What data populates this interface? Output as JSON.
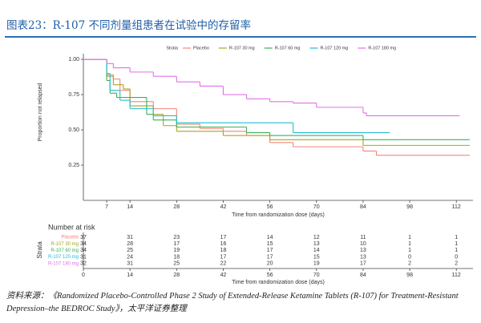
{
  "header": {
    "title": "图表23：R-107 不同剂量组患者在试验中的存留率"
  },
  "chart_data": {
    "type": "step",
    "legend_title": "Strata",
    "ylabel": "Proportion not relapsed",
    "xlabel": "Time from randomization dose (days)",
    "xlim": [
      0,
      117
    ],
    "ylim": [
      0,
      1.04
    ],
    "xticks": [
      7,
      14,
      28,
      42,
      56,
      70,
      84,
      98,
      112
    ],
    "yticks": [
      {
        "value": 0.25,
        "label": "0.25"
      },
      {
        "value": 0.5,
        "label": "0.50"
      },
      {
        "value": 0.75,
        "label": "0.75"
      },
      {
        "value": 1,
        "label": "1.00"
      }
    ],
    "series": [
      {
        "name": "Placebo",
        "color": "#f4847a",
        "x": [
          0,
          7,
          9,
          11,
          14,
          21,
          28,
          35,
          42,
          49,
          56,
          63,
          84,
          88,
          116
        ],
        "values": [
          1,
          0.89,
          0.86,
          0.78,
          0.7,
          0.65,
          0.54,
          0.51,
          0.49,
          0.46,
          0.41,
          0.38,
          0.35,
          0.32,
          0.32
        ]
      },
      {
        "name": "R-107 30 mg",
        "color": "#a9a51a",
        "x": [
          0,
          7,
          9,
          12,
          14,
          21,
          24,
          28,
          42,
          56,
          84,
          116
        ],
        "values": [
          1,
          0.88,
          0.82,
          0.79,
          0.67,
          0.61,
          0.53,
          0.49,
          0.46,
          0.43,
          0.39,
          0.39
        ]
      },
      {
        "name": "R-107 60 mg",
        "color": "#38b05a",
        "x": [
          0,
          7,
          8,
          10,
          19,
          21,
          28,
          49,
          56,
          84,
          116
        ],
        "values": [
          1,
          0.85,
          0.76,
          0.73,
          0.61,
          0.57,
          0.52,
          0.48,
          0.46,
          0.43,
          0.43
        ]
      },
      {
        "name": "R-107 120 mg",
        "color": "#22bcd0",
        "x": [
          0,
          7,
          8,
          11,
          14,
          21,
          28,
          63,
          92
        ],
        "values": [
          1,
          0.9,
          0.78,
          0.71,
          0.65,
          0.6,
          0.55,
          0.48,
          0.48
        ]
      },
      {
        "name": "R-107 180 mg",
        "color": "#e070e8",
        "x": [
          0,
          7,
          9,
          14,
          21,
          28,
          35,
          42,
          49,
          56,
          63,
          70,
          84,
          85,
          113
        ],
        "values": [
          1,
          0.97,
          0.94,
          0.91,
          0.88,
          0.84,
          0.81,
          0.75,
          0.72,
          0.7,
          0.69,
          0.66,
          0.62,
          0.6,
          0.6
        ]
      }
    ],
    "risk_table": {
      "title": "Number at risk",
      "strata_label": "Strata",
      "xlabel": "Time from randomization dose (days)",
      "xticks": [
        0,
        14,
        28,
        42,
        56,
        70,
        84,
        98,
        112
      ],
      "rows": [
        [
          37,
          31,
          23,
          17,
          14,
          12,
          11,
          1,
          1
        ],
        [
          34,
          28,
          17,
          16,
          15,
          13,
          10,
          1,
          1
        ],
        [
          34,
          25,
          19,
          18,
          17,
          14,
          13,
          1,
          1
        ],
        [
          31,
          24,
          18,
          17,
          17,
          15,
          13,
          0,
          0
        ],
        [
          32,
          31,
          25,
          22,
          20,
          19,
          17,
          2,
          2
        ]
      ]
    }
  },
  "footer": {
    "source": "资料来源：《Randomized Placebo-Controlled Phase 2 Study of Extended-Release Ketamine Tablets (R-107) for Treatment-Resistant Depression–the BEDROC Study》，太平洋证券整理"
  }
}
